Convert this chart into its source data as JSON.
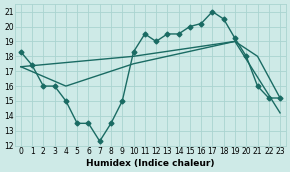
{
  "xlabel": "Humidex (Indice chaleur)",
  "xlim": [
    -0.5,
    23.5
  ],
  "ylim": [
    12,
    21.5
  ],
  "yticks": [
    12,
    13,
    14,
    15,
    16,
    17,
    18,
    19,
    20,
    21
  ],
  "xticks": [
    0,
    1,
    2,
    3,
    4,
    5,
    6,
    7,
    8,
    9,
    10,
    11,
    12,
    13,
    14,
    15,
    16,
    17,
    18,
    19,
    20,
    21,
    22,
    23
  ],
  "bg_color": "#ceeae7",
  "grid_color": "#aad4d0",
  "line_color": "#1a6b63",
  "main_x": [
    0,
    1,
    2,
    3,
    4,
    5,
    6,
    7,
    8,
    9,
    10,
    11,
    12,
    13,
    14,
    15,
    16,
    17,
    18,
    19,
    20,
    21,
    22,
    23
  ],
  "main_y": [
    18.3,
    17.4,
    16.0,
    16.0,
    15.0,
    13.5,
    13.5,
    12.3,
    13.5,
    15.0,
    18.3,
    19.5,
    19.0,
    19.5,
    19.5,
    20.0,
    20.2,
    21.0,
    20.5,
    19.2,
    18.0,
    16.0,
    15.2,
    15.2
  ],
  "upper_x": [
    0,
    10,
    19,
    21,
    23
  ],
  "upper_y": [
    17.3,
    18.0,
    19.0,
    18.0,
    15.2
  ],
  "lower_x": [
    0,
    4,
    10,
    19,
    23
  ],
  "lower_y": [
    17.3,
    16.0,
    17.5,
    19.0,
    14.2
  ],
  "marker": "D",
  "marker_size": 2.5,
  "line_width": 1.0
}
